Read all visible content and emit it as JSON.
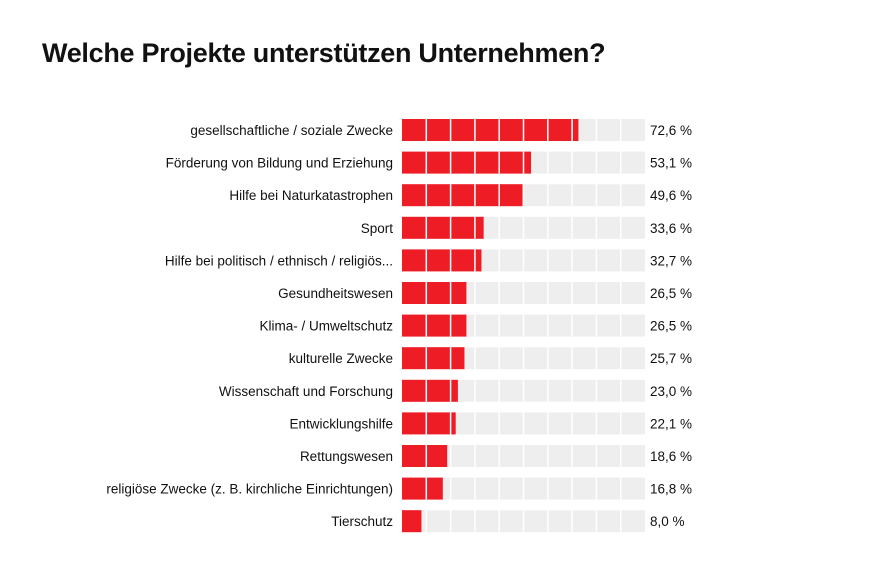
{
  "chart_data": {
    "type": "bar",
    "orientation": "horizontal",
    "title": "Welche Projekte unterstützen Unternehmen?",
    "xlim": [
      0,
      100
    ],
    "segment_step": 10,
    "bar_color": "#ee1c25",
    "track_color": "#eeeeee",
    "categories": [
      "gesellschaftliche / soziale Zwecke",
      "Förderung von Bildung und Erziehung",
      "Hilfe bei Naturkatastrophen",
      "Sport",
      "Hilfe bei politisch / ethnisch / religiös...",
      "Gesundheitswesen",
      "Klima- / Umweltschutz",
      "kulturelle Zwecke",
      "Wissenschaft und Forschung",
      "Entwicklungshilfe",
      "Rettungswesen",
      "religiöse Zwecke (z. B. kirchliche Einrichtungen)",
      "Tierschutz"
    ],
    "values": [
      72.6,
      53.1,
      49.6,
      33.6,
      32.7,
      26.5,
      26.5,
      25.7,
      23.0,
      22.1,
      18.6,
      16.8,
      8.0
    ],
    "value_labels": [
      "72,6 %",
      "53,1 %",
      "49,6 %",
      "33,6 %",
      "32,7 %",
      "26,5 %",
      "26,5 %",
      "25,7 %",
      "23,0 %",
      "22,1 %",
      "18,6 %",
      "16,8 %",
      "8,0 %"
    ]
  }
}
